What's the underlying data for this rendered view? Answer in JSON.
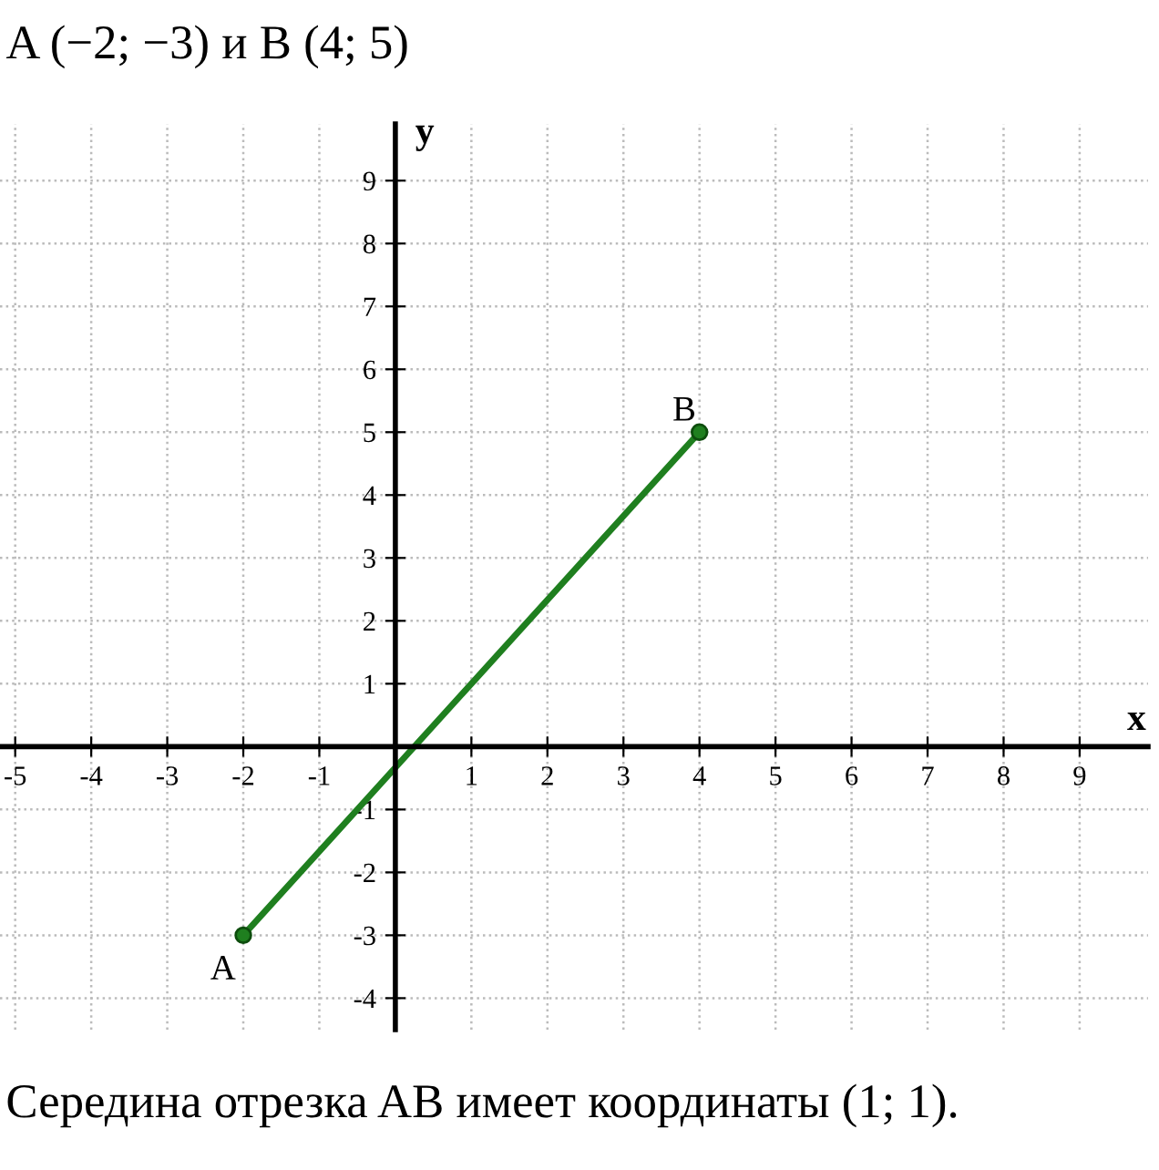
{
  "chart_data": {
    "type": "line",
    "title": "A (−2; −3) и B (4; 5)",
    "xlabel": "x",
    "ylabel": "y",
    "x": [
      -2,
      4
    ],
    "series": [
      {
        "color": "#1f7f1f",
        "values": [
          -3,
          5
        ]
      }
    ],
    "annotations": [
      {
        "text": "A",
        "x": -2,
        "y": -3
      },
      {
        "text": "B",
        "x": 4,
        "y": 5
      },
      "Середина отрезка AB имеет координаты (1; 1)."
    ],
    "xlim": [
      -5.2,
      9.9
    ],
    "ylim": [
      -4.5,
      9.9
    ],
    "xticks": [
      -5,
      -4,
      -3,
      -2,
      -1,
      1,
      2,
      3,
      4,
      5,
      6,
      7,
      8,
      9
    ],
    "yticks": [
      -4,
      -3,
      -2,
      -1,
      1,
      2,
      3,
      4,
      5,
      6,
      7,
      8,
      9
    ],
    "grid": true,
    "marker": "circle",
    "line_style": "solid"
  }
}
